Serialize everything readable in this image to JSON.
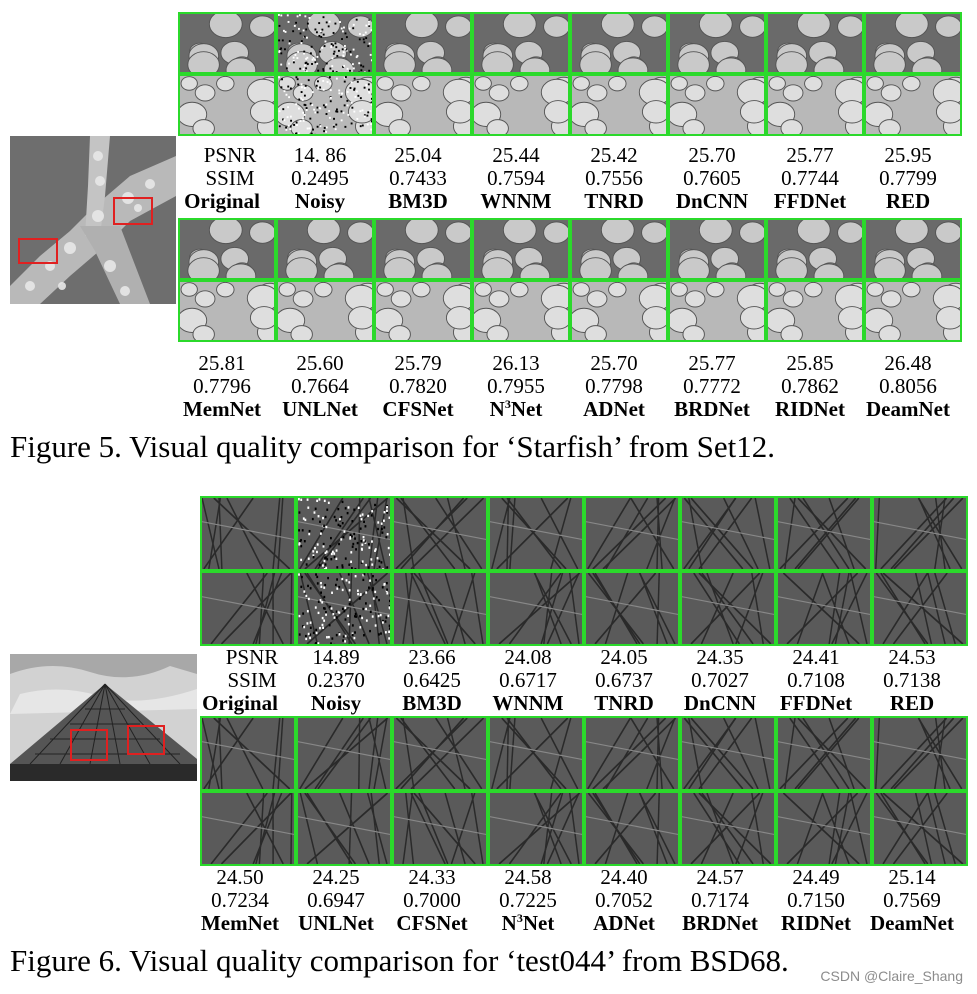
{
  "figure5": {
    "caption": "Figure 5. Visual quality comparison for ‘Starfish’ from Set12.",
    "row_labels": [
      "PSNR",
      "SSIM"
    ],
    "top": {
      "psnr": [
        "",
        "14. 86",
        "25.04",
        "25.44",
        "25.42",
        "25.70",
        "25.77",
        "25.95"
      ],
      "ssim": [
        "",
        "0.2495",
        "0.7433",
        "0.7594",
        "0.7556",
        "0.7605",
        "0.7744",
        "0.7799"
      ],
      "names": [
        "Original",
        "Noisy",
        "BM3D",
        "WNNM",
        "TNRD",
        "DnCNN",
        "FFDNet",
        "RED"
      ]
    },
    "bottom": {
      "psnr": [
        "25.81",
        "25.60",
        "25.79",
        "26.13",
        "25.70",
        "25.77",
        "25.85",
        "26.48"
      ],
      "ssim": [
        "0.7796",
        "0.7664",
        "0.7820",
        "0.7955",
        "0.7798",
        "0.7772",
        "0.7862",
        "0.8056"
      ],
      "names": [
        "MemNet",
        "UNLNet",
        "CFSNet",
        "N",
        "ADNet",
        "BRDNet",
        "RIDNet",
        "DeamNet"
      ]
    },
    "superscript": "3",
    "superscript_suffix": "Net"
  },
  "figure6": {
    "caption": "Figure 6. Visual quality comparison for ‘test044’ from BSD68.",
    "row_labels": [
      "PSNR",
      "SSIM"
    ],
    "top": {
      "psnr": [
        "",
        "14.89",
        "23.66",
        "24.08",
        "24.05",
        "24.35",
        "24.41",
        "24.53"
      ],
      "ssim": [
        "",
        "0.2370",
        "0.6425",
        "0.6717",
        "0.6737",
        "0.7027",
        "0.7108",
        "0.7138"
      ],
      "names": [
        "Original",
        "Noisy",
        "BM3D",
        "WNNM",
        "TNRD",
        "DnCNN",
        "FFDNet",
        "RED"
      ]
    },
    "bottom": {
      "psnr": [
        "24.50",
        "24.25",
        "24.33",
        "24.58",
        "24.40",
        "24.57",
        "24.49",
        "25.14"
      ],
      "ssim": [
        "0.7234",
        "0.6947",
        "0.7000",
        "0.7225",
        "0.7052",
        "0.7174",
        "0.7150",
        "0.7569"
      ],
      "names": [
        "MemNet",
        "UNLNet",
        "CFSNet",
        "N",
        "ADNet",
        "BRDNet",
        "RIDNet",
        "DeamNet"
      ]
    },
    "superscript": "3",
    "superscript_suffix": "Net"
  },
  "watermark": "CSDN @Claire_Shang",
  "colors": {
    "frame_green": "#2bd92b",
    "roi_red": "#e02020"
  }
}
